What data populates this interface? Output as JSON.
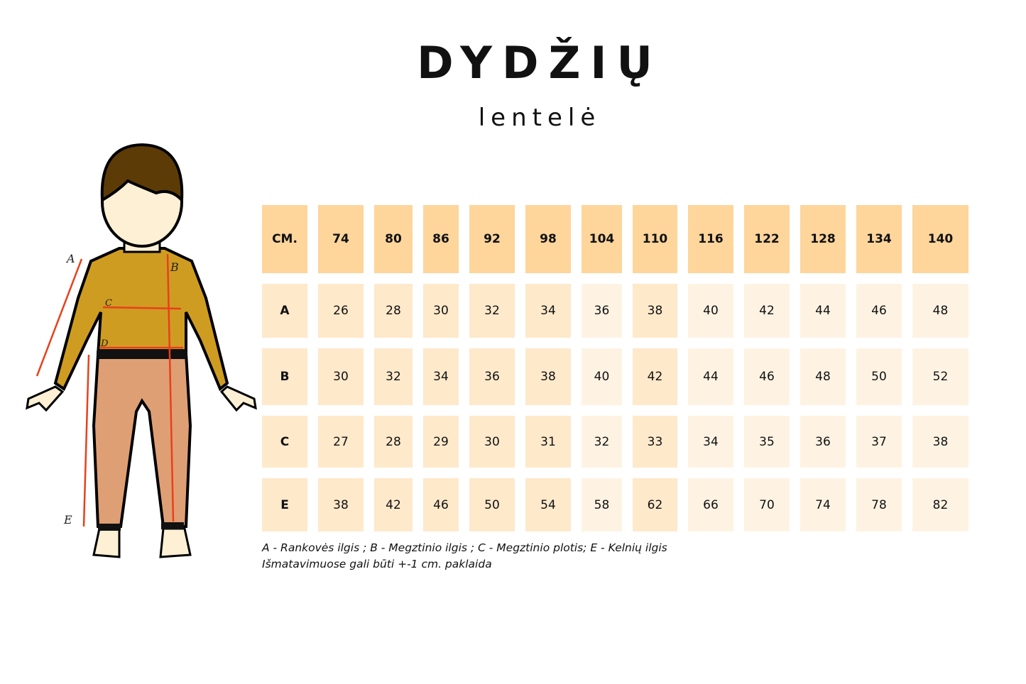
{
  "header": {
    "title": "DYDŽIŲ",
    "subtitle": "lentelė"
  },
  "table": {
    "corner": "CM.",
    "sizes": [
      "74",
      "80",
      "86",
      "92",
      "98",
      "104",
      "110",
      "116",
      "122",
      "128",
      "134",
      "140"
    ],
    "rows": [
      {
        "label": "A",
        "values": [
          "26",
          "28",
          "30",
          "32",
          "34",
          "36",
          "38",
          "40",
          "42",
          "44",
          "46",
          "48"
        ]
      },
      {
        "label": "B",
        "values": [
          "30",
          "32",
          "34",
          "36",
          "38",
          "40",
          "42",
          "44",
          "46",
          "48",
          "50",
          "52"
        ]
      },
      {
        "label": "C",
        "values": [
          "27",
          "28",
          "29",
          "30",
          "31",
          "32",
          "33",
          "34",
          "35",
          "36",
          "37",
          "38"
        ]
      },
      {
        "label": "E",
        "values": [
          "38",
          "42",
          "46",
          "50",
          "54",
          "58",
          "62",
          "66",
          "70",
          "74",
          "78",
          "82"
        ]
      }
    ]
  },
  "notes": {
    "legend": "A - Rankovės ilgis ; B - Megztinio ilgis ; C - Megztinio plotis; E - Kelnių ilgis",
    "tolerance": "Išmatavimuose gali būti +-1 cm. paklaida"
  },
  "illustration": {
    "labels": [
      "A",
      "B",
      "C",
      "D",
      "E"
    ]
  },
  "colors": {
    "header_cell": "#fed59b",
    "body_cell_dark": "#fee9cb",
    "body_cell_light": "#fef3e3",
    "sweater": "#cf9c22",
    "pants": "#df9f74",
    "hair": "#5c3b06",
    "skin": "#fdf0d5",
    "measure_line": "#e8401c"
  }
}
